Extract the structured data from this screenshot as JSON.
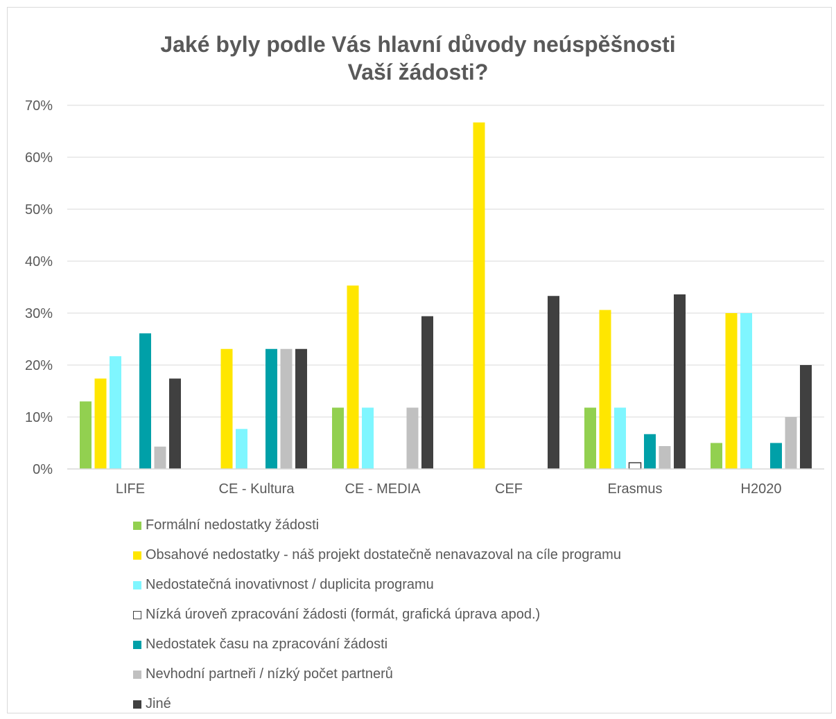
{
  "chart_data": {
    "type": "bar",
    "title": [
      "Jaké byly podle Vás hlavní důvody neúspěšnosti",
      "Vaší žádosti?"
    ],
    "categories": [
      "LIFE",
      "CE - Kultura",
      "CE - MEDIA",
      "CEF",
      "Erasmus",
      "H2020"
    ],
    "ylim": [
      0,
      70
    ],
    "y_ticks": [
      "0%",
      "10%",
      "20%",
      "30%",
      "40%",
      "50%",
      "60%",
      "70%"
    ],
    "grid": true,
    "legend_position": "bottom",
    "series": [
      {
        "name": "Formální nedostatky žádosti",
        "color": "#92d050",
        "values": [
          13,
          0,
          11.8,
          0,
          11.8,
          5
        ]
      },
      {
        "name": "Obsahové nedostatky - náš projekt dostatečně nenavazoval na cíle programu",
        "color": "#ffe600",
        "values": [
          17.4,
          23.1,
          35.3,
          66.7,
          30.6,
          30
        ]
      },
      {
        "name": "Nedostatečná inovativnost / duplicita programu",
        "color": "#7ff6ff",
        "values": [
          21.7,
          7.7,
          11.8,
          0,
          11.8,
          30
        ]
      },
      {
        "name": "Nízká úroveň zpracování žádosti (formát, grafická úprava apod.)",
        "color": "#ffffff",
        "outline": "#404040",
        "values": [
          0,
          0,
          0,
          0,
          1.2,
          0
        ]
      },
      {
        "name": "Nedostatek času na zpracování žádosti",
        "color": "#00a0a8",
        "values": [
          26.1,
          23.1,
          0,
          0,
          6.7,
          5
        ]
      },
      {
        "name": "Nevhodní partneři / nízký počet partnerů",
        "color": "#c0c0c0",
        "values": [
          4.3,
          23.1,
          11.8,
          0,
          4.4,
          10
        ]
      },
      {
        "name": "Jiné",
        "color": "#404040",
        "values": [
          17.4,
          23.1,
          29.4,
          33.3,
          33.6,
          20
        ]
      }
    ]
  }
}
